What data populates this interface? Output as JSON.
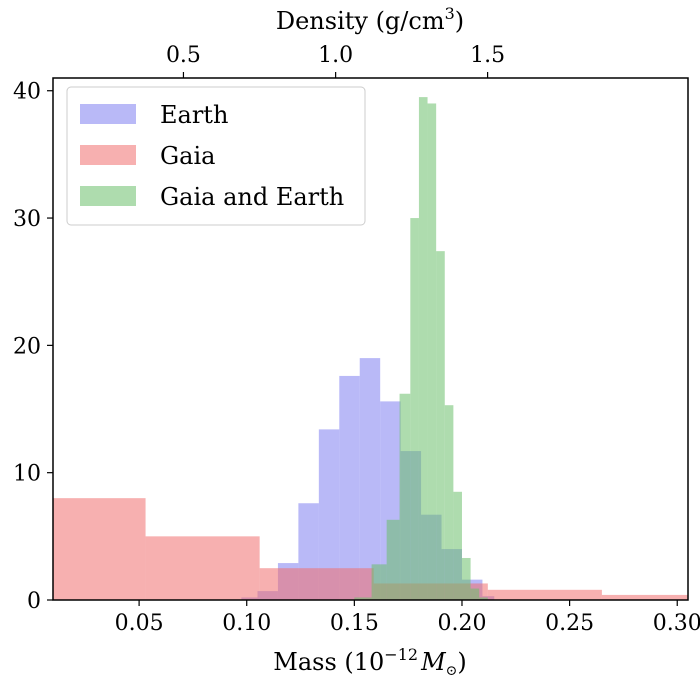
{
  "chart_data": {
    "type": "histogram",
    "title": "",
    "xlabel": "Mass (10",
    "xlabel_sup": "−12",
    "xlabel_tail": "M",
    "xlabel_sub": "⊙",
    "xlabel_close": ")",
    "x2label": "Density (g/cm",
    "x2label_sup": "3",
    "x2label_close": ")",
    "ylabel": "",
    "xlim": [
      0.01,
      0.305
    ],
    "ylim": [
      0,
      41
    ],
    "x_ticks": [
      0.05,
      0.1,
      0.15,
      0.2,
      0.25,
      0.3
    ],
    "x_tick_labels": [
      "0.05",
      "0.10",
      "0.15",
      "0.20",
      "0.25",
      "0.30"
    ],
    "y_ticks": [
      0,
      10,
      20,
      30,
      40
    ],
    "y_tick_labels": [
      "0",
      "10",
      "20",
      "30",
      "40"
    ],
    "x2_ticks_mass": [
      0.0706,
      0.1413,
      0.2119
    ],
    "x2_tick_labels": [
      "0.5",
      "1.0",
      "1.5"
    ],
    "legend_position": "top-left",
    "series": [
      {
        "name": "Earth",
        "color": "#8080f0",
        "opacity": 0.55,
        "bins": [
          {
            "x0": 0.0975,
            "x1": 0.105,
            "y": 0.2
          },
          {
            "x0": 0.105,
            "x1": 0.1145,
            "y": 0.7
          },
          {
            "x0": 0.1145,
            "x1": 0.124,
            "y": 2.9
          },
          {
            "x0": 0.124,
            "x1": 0.1335,
            "y": 7.6
          },
          {
            "x0": 0.1335,
            "x1": 0.143,
            "y": 13.4
          },
          {
            "x0": 0.143,
            "x1": 0.1525,
            "y": 17.6
          },
          {
            "x0": 0.1525,
            "x1": 0.162,
            "y": 19.0
          },
          {
            "x0": 0.162,
            "x1": 0.1715,
            "y": 15.6
          },
          {
            "x0": 0.1715,
            "x1": 0.181,
            "y": 11.7
          },
          {
            "x0": 0.181,
            "x1": 0.1905,
            "y": 6.7
          },
          {
            "x0": 0.1905,
            "x1": 0.2,
            "y": 4.0
          },
          {
            "x0": 0.2,
            "x1": 0.2095,
            "y": 1.6
          },
          {
            "x0": 0.2095,
            "x1": 0.215,
            "y": 0.3
          }
        ]
      },
      {
        "name": "Gaia",
        "color": "#f07070",
        "opacity": 0.55,
        "bins": [
          {
            "x0": 0.01,
            "x1": 0.053,
            "y": 8.0
          },
          {
            "x0": 0.053,
            "x1": 0.106,
            "y": 5.0
          },
          {
            "x0": 0.106,
            "x1": 0.159,
            "y": 2.5
          },
          {
            "x0": 0.159,
            "x1": 0.212,
            "y": 1.3
          },
          {
            "x0": 0.212,
            "x1": 0.265,
            "y": 0.8
          },
          {
            "x0": 0.265,
            "x1": 0.305,
            "y": 0.4
          }
        ]
      },
      {
        "name": "Gaia and Earth",
        "color": "#6cc06c",
        "opacity": 0.55,
        "bins": [
          {
            "x0": 0.15,
            "x1": 0.158,
            "y": 0.2
          },
          {
            "x0": 0.158,
            "x1": 0.165,
            "y": 2.8
          },
          {
            "x0": 0.165,
            "x1": 0.171,
            "y": 6.3
          },
          {
            "x0": 0.171,
            "x1": 0.176,
            "y": 16.2
          },
          {
            "x0": 0.176,
            "x1": 0.18,
            "y": 30.0
          },
          {
            "x0": 0.18,
            "x1": 0.184,
            "y": 39.5
          },
          {
            "x0": 0.184,
            "x1": 0.188,
            "y": 39.0
          },
          {
            "x0": 0.188,
            "x1": 0.192,
            "y": 27.4
          },
          {
            "x0": 0.192,
            "x1": 0.196,
            "y": 15.3
          },
          {
            "x0": 0.196,
            "x1": 0.2,
            "y": 8.5
          },
          {
            "x0": 0.2,
            "x1": 0.204,
            "y": 3.3
          },
          {
            "x0": 0.204,
            "x1": 0.208,
            "y": 0.9
          },
          {
            "x0": 0.208,
            "x1": 0.212,
            "y": 0.2
          }
        ]
      }
    ]
  }
}
